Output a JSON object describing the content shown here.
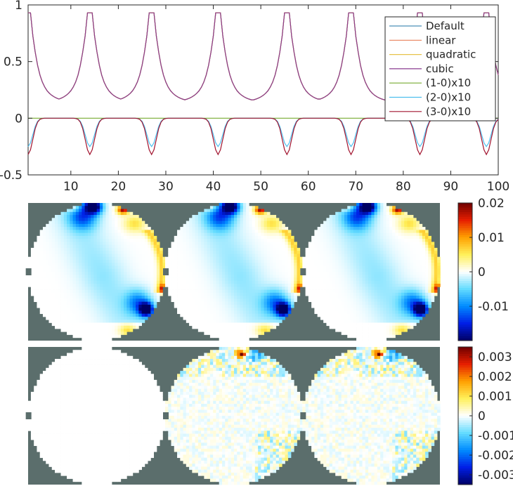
{
  "chart_data": [
    {
      "type": "line",
      "title": "",
      "xlabel": "",
      "ylabel": "",
      "xlim": [
        1,
        100
      ],
      "ylim": [
        -0.5,
        1
      ],
      "xticks": [
        10,
        20,
        30,
        40,
        50,
        60,
        70,
        80,
        90,
        100
      ],
      "xtick_labels": [
        "10",
        "20",
        "30",
        "40",
        "50",
        "60",
        "70",
        "80",
        "90",
        "100"
      ],
      "yticks": [
        -0.5,
        0,
        0.5,
        1
      ],
      "ytick_labels": [
        "-0.5",
        "0",
        "0.5",
        "1"
      ],
      "grid": false,
      "legend_position": "top-right",
      "peak_centers": [
        1,
        14,
        27,
        41,
        55.5,
        69,
        83.5,
        97.5
      ],
      "series": [
        {
          "name": "Default",
          "color": "#4a8fb8",
          "kind": "main",
          "peak": 0.93
        },
        {
          "name": "linear",
          "color": "#e8805a",
          "kind": "main",
          "peak": 0.93
        },
        {
          "name": "quadratic",
          "color": "#e8c24a",
          "kind": "main",
          "peak": 0.93
        },
        {
          "name": "cubic",
          "color": "#8a3a8f",
          "kind": "main",
          "peak": 0.93
        },
        {
          "name": "(1-0)x10",
          "color": "#77ac30",
          "kind": "flat",
          "peak": 0
        },
        {
          "name": "(2-0)x10",
          "color": "#4dbeee",
          "kind": "diff",
          "peak": -0.25
        },
        {
          "name": "(3-0)x10",
          "color": "#a2142f",
          "kind": "diff",
          "peak": -0.32
        }
      ]
    },
    {
      "type": "heatmap",
      "panels": 3,
      "colormap": "jet-white-center",
      "clim": [
        -0.02,
        0.02
      ],
      "colorbar_ticks": [
        0.02,
        0.01,
        0,
        -0.01
      ],
      "colorbar_labels": [
        "0.02",
        "0.01",
        "0",
        "-0.01"
      ]
    },
    {
      "type": "heatmap",
      "panels": 3,
      "colormap": "jet-white-center",
      "clim": [
        -0.0035,
        0.0035
      ],
      "colorbar_ticks": [
        0.003,
        0.002,
        0.001,
        0,
        -0.001,
        -0.002,
        -0.003
      ],
      "colorbar_labels": [
        "0.003",
        "0.002",
        "0.001",
        "0",
        "-0.001",
        "-0.002",
        "-0.003"
      ]
    }
  ],
  "colors": {
    "background_outside_disc": "#5b6e6c",
    "axis": "#262626"
  }
}
